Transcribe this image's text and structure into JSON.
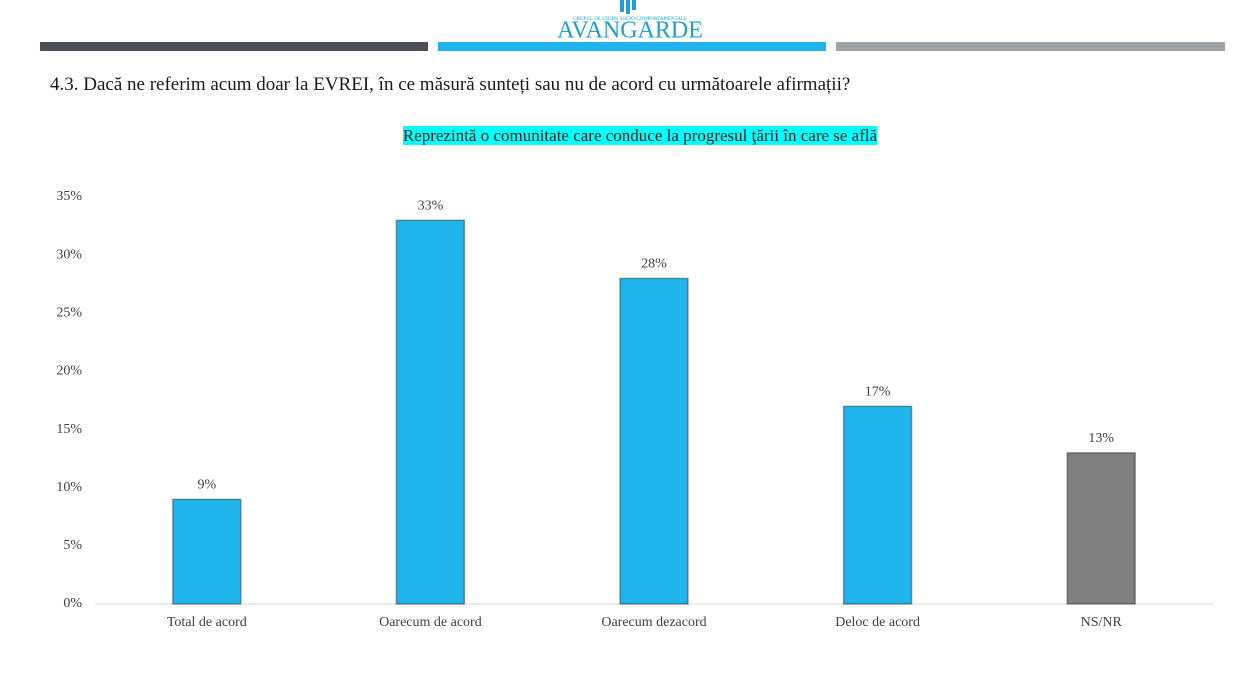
{
  "header": {
    "logo_tagline": "GRUPUL DE STUDII SOCIO-COMPORTAMENTALE",
    "logo": "AVANGARDE"
  },
  "question": "4.3. Dacă ne referim acum doar la EVREI, în ce măsură sunteți sau nu de acord cu următoarele afirmații?",
  "chart_data": {
    "type": "bar",
    "title": "Reprezintă o comunitate care conduce la progresul ţării în care se află",
    "categories": [
      "Total de acord",
      "Oarecum de acord",
      "Oarecum dezacord",
      "Deloc de acord",
      "NS/NR"
    ],
    "values": [
      9,
      33,
      28,
      17,
      13
    ],
    "value_labels": [
      "9%",
      "33%",
      "28%",
      "17%",
      "13%"
    ],
    "colors": [
      "#1fb5ec",
      "#1fb5ec",
      "#1fb5ec",
      "#1fb5ec",
      "#808080"
    ],
    "ylim": [
      0,
      35
    ],
    "yticks": [
      {
        "value": 0,
        "label": "0%"
      },
      {
        "value": 5,
        "label": "5%"
      },
      {
        "value": 10,
        "label": "10%"
      },
      {
        "value": 15,
        "label": "15%"
      },
      {
        "value": 20,
        "label": "20%"
      },
      {
        "value": 25,
        "label": "25%"
      },
      {
        "value": 30,
        "label": "30%"
      },
      {
        "value": 35,
        "label": "35%"
      }
    ],
    "grid": false
  }
}
